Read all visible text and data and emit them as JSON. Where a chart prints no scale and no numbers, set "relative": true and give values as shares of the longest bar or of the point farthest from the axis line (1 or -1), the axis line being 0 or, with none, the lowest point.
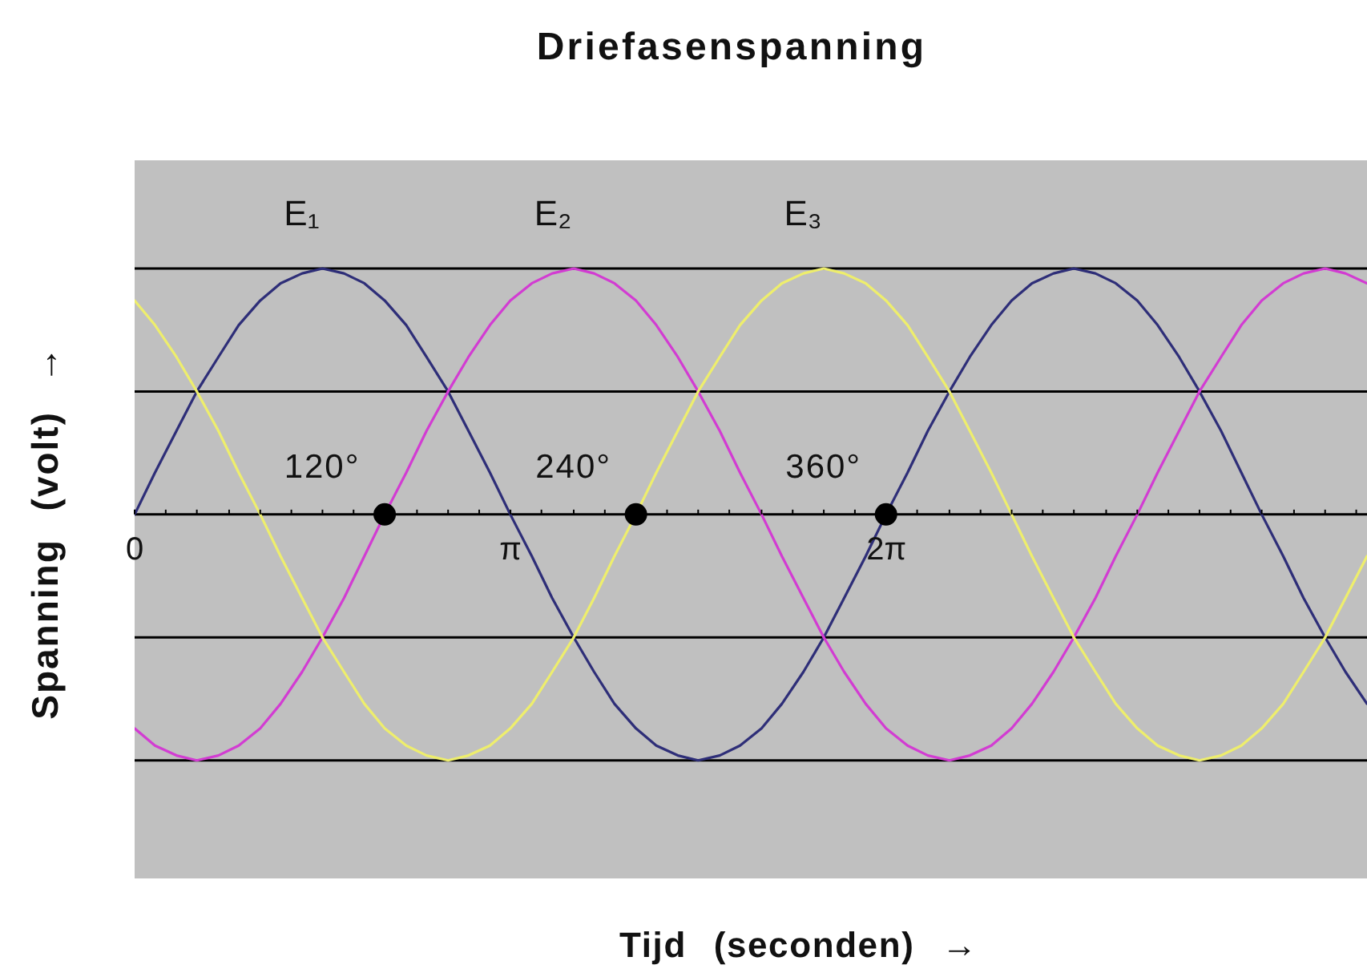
{
  "chart_data": {
    "type": "line",
    "title": "Driefasenspanning",
    "xlabel": "Tijd (seconden) →",
    "ylabel": "Spanning (volt) →",
    "relative": true,
    "line_style": "solid",
    "x": [
      0,
      0.17,
      0.35,
      0.52,
      0.7,
      0.87,
      1.05,
      1.22,
      1.4,
      1.57,
      1.75,
      1.92,
      2.09,
      2.27,
      2.44,
      2.62,
      2.79,
      2.97,
      3.14,
      3.32,
      3.49,
      3.67,
      3.84,
      4.01,
      4.19,
      4.36,
      4.54,
      4.71,
      4.89,
      5.06,
      5.24,
      5.41,
      5.59,
      5.76,
      5.93,
      6.11,
      6.28,
      6.46,
      6.63,
      6.81,
      6.98,
      7.16,
      7.33,
      7.5,
      7.68,
      7.85,
      8.03,
      8.2,
      8.38,
      8.55,
      8.73,
      8.9,
      9.08,
      9.25,
      9.42,
      9.6,
      9.77,
      9.95,
      10.12,
      10.3
    ],
    "xlim": [
      0,
      10.3
    ],
    "xticks": [
      {
        "value": 0,
        "label": "0"
      },
      {
        "value": 0.26,
        "label": null
      },
      {
        "value": 0.52,
        "label": null
      },
      {
        "value": 0.79,
        "label": null
      },
      {
        "value": 1.05,
        "label": null
      },
      {
        "value": 1.31,
        "label": null
      },
      {
        "value": 1.57,
        "label": null
      },
      {
        "value": 1.83,
        "label": null
      },
      {
        "value": 2.09,
        "label": null
      },
      {
        "value": 2.36,
        "label": null
      },
      {
        "value": 2.62,
        "label": null
      },
      {
        "value": 2.88,
        "label": null
      },
      {
        "value": 3.1416,
        "label": "π"
      },
      {
        "value": 3.4,
        "label": null
      },
      {
        "value": 3.67,
        "label": null
      },
      {
        "value": 3.93,
        "label": null
      },
      {
        "value": 4.19,
        "label": null
      },
      {
        "value": 4.45,
        "label": null
      },
      {
        "value": 4.71,
        "label": null
      },
      {
        "value": 4.97,
        "label": null
      },
      {
        "value": 5.24,
        "label": null
      },
      {
        "value": 5.5,
        "label": null
      },
      {
        "value": 5.76,
        "label": null
      },
      {
        "value": 6.02,
        "label": null
      },
      {
        "value": 6.2832,
        "label": "2π"
      },
      {
        "value": 6.54,
        "label": null
      },
      {
        "value": 6.81,
        "label": null
      },
      {
        "value": 7.07,
        "label": null
      },
      {
        "value": 7.33,
        "label": null
      },
      {
        "value": 7.59,
        "label": null
      },
      {
        "value": 7.85,
        "label": null
      },
      {
        "value": 8.12,
        "label": null
      },
      {
        "value": 8.38,
        "label": null
      },
      {
        "value": 8.64,
        "label": null
      },
      {
        "value": 8.9,
        "label": null
      },
      {
        "value": 9.16,
        "label": null
      },
      {
        "value": 9.42,
        "label": null
      },
      {
        "value": 9.69,
        "label": null
      },
      {
        "value": 9.95,
        "label": null
      },
      {
        "value": 10.21,
        "label": null
      }
    ],
    "series": [
      {
        "name": "E₁",
        "color": "#2e2e78",
        "values": [
          0,
          0.17,
          0.34,
          0.5,
          0.64,
          0.77,
          0.87,
          0.94,
          0.98,
          1,
          0.98,
          0.94,
          0.87,
          0.77,
          0.64,
          0.5,
          0.34,
          0.17,
          0,
          -0.17,
          -0.34,
          -0.5,
          -0.64,
          -0.77,
          -0.87,
          -0.94,
          -0.98,
          -1,
          -0.98,
          -0.94,
          -0.87,
          -0.77,
          -0.64,
          -0.5,
          -0.34,
          -0.17,
          0,
          0.17,
          0.34,
          0.5,
          0.64,
          0.77,
          0.87,
          0.94,
          0.98,
          1,
          0.98,
          0.94,
          0.87,
          0.77,
          0.64,
          0.5,
          0.34,
          0.17,
          0,
          -0.17,
          -0.34,
          -0.5,
          -0.64,
          -0.77
        ]
      },
      {
        "name": "E₂",
        "color": "#d23cd2",
        "values": [
          -0.87,
          -0.94,
          -0.98,
          -1,
          -0.98,
          -0.94,
          -0.87,
          -0.77,
          -0.64,
          -0.5,
          -0.34,
          -0.17,
          0,
          0.17,
          0.34,
          0.5,
          0.64,
          0.77,
          0.87,
          0.94,
          0.98,
          1,
          0.98,
          0.94,
          0.87,
          0.77,
          0.64,
          0.5,
          0.34,
          0.17,
          0,
          -0.17,
          -0.34,
          -0.5,
          -0.64,
          -0.77,
          -0.87,
          -0.94,
          -0.98,
          -1,
          -0.98,
          -0.94,
          -0.87,
          -0.77,
          -0.64,
          -0.5,
          -0.34,
          -0.17,
          0,
          0.17,
          0.34,
          0.5,
          0.64,
          0.77,
          0.87,
          0.94,
          0.98,
          1,
          0.98,
          0.94
        ]
      },
      {
        "name": "E₃",
        "color": "#eeee6c",
        "values": [
          0.87,
          0.77,
          0.64,
          0.5,
          0.34,
          0.17,
          0,
          -0.17,
          -0.34,
          -0.5,
          -0.64,
          -0.77,
          -0.87,
          -0.94,
          -0.98,
          -1,
          -0.98,
          -0.94,
          -0.87,
          -0.77,
          -0.64,
          -0.5,
          -0.34,
          -0.17,
          0,
          0.17,
          0.34,
          0.5,
          0.64,
          0.77,
          0.87,
          0.94,
          0.98,
          1,
          0.98,
          0.94,
          0.87,
          0.77,
          0.64,
          0.5,
          0.34,
          0.17,
          0,
          -0.17,
          -0.34,
          -0.5,
          -0.64,
          -0.77,
          -0.87,
          -0.94,
          -0.98,
          -1,
          -0.98,
          -0.94,
          -0.87,
          -0.77,
          -0.64,
          -0.5,
          -0.34,
          -0.17
        ]
      },
      {
        "type": "scatter",
        "color": "#000000",
        "marker": "circle",
        "x": [
          2.09,
          4.19,
          6.28
        ],
        "values": [
          0,
          0,
          0
        ]
      }
    ],
    "ref_lines": [
      {
        "axis": "y",
        "value": 1,
        "color": "#000000"
      },
      {
        "axis": "y",
        "value": 0.5,
        "color": "#000000"
      },
      {
        "axis": "y",
        "value": -0.5,
        "color": "#000000"
      },
      {
        "axis": "y",
        "value": -1,
        "color": "#000000"
      }
    ],
    "annotations": [
      {
        "text": "120°",
        "x": 2.09,
        "y": 0
      },
      {
        "text": "240°",
        "x": 4.19,
        "y": 0
      },
      {
        "text": "360°",
        "x": 6.28,
        "y": 0
      }
    ]
  }
}
